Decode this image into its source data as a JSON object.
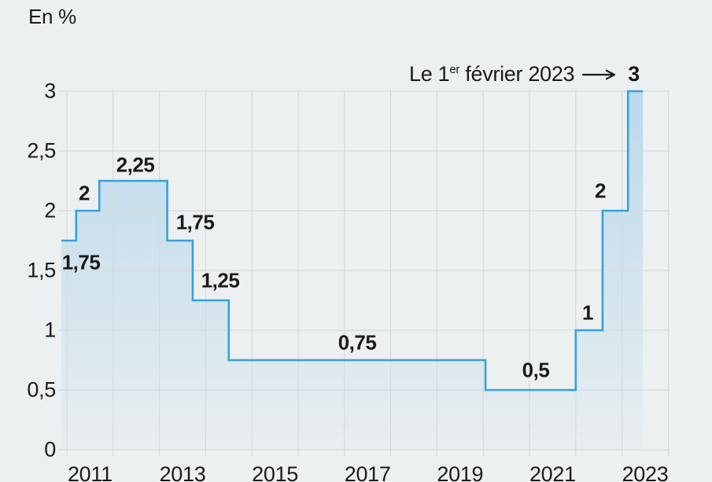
{
  "page": {
    "background_color": "#edf0f1",
    "text_color": "#1a1a1a"
  },
  "chart_data": {
    "type": "area",
    "subtype": "step-line",
    "title": "",
    "unit": "En %",
    "xlabel": "",
    "ylabel": "En %",
    "grid": true,
    "legend": "none",
    "xlim": [
      2010.75,
      2024
    ],
    "ylim": [
      0,
      3
    ],
    "x_grid_years": [
      2011,
      2012,
      2013,
      2014,
      2015,
      2016,
      2017,
      2018,
      2019,
      2020,
      2021,
      2022,
      2023,
      2024
    ],
    "x_ticks": [
      2011,
      2013,
      2015,
      2017,
      2019,
      2021,
      2023
    ],
    "x_tick_labels": [
      "2011",
      "2013",
      "2015",
      "2017",
      "2019",
      "2021",
      "2023"
    ],
    "y_ticks": [
      0,
      0.5,
      1,
      1.5,
      2,
      2.5,
      3
    ],
    "y_tick_labels": [
      "0",
      "0,5",
      "1",
      "1,5",
      "2",
      "2,5",
      "3"
    ],
    "steps": [
      {
        "year_start": 2010.88,
        "value": 1.75,
        "label": "1,75"
      },
      {
        "year_start": 2011.2,
        "value": 2.0,
        "label": "2"
      },
      {
        "year_start": 2011.7,
        "value": 2.25,
        "label": "2,25"
      },
      {
        "year_start": 2013.17,
        "value": 1.75,
        "label": "1,75"
      },
      {
        "year_start": 2013.72,
        "value": 1.25,
        "label": "1,25"
      },
      {
        "year_start": 2014.5,
        "value": 0.75,
        "label": "0,75"
      },
      {
        "year_start": 2020.05,
        "value": 0.5,
        "label": "0,5"
      },
      {
        "year_start": 2022.0,
        "value": 1.0,
        "label": "1"
      },
      {
        "year_start": 2022.58,
        "value": 2.0,
        "label": "2"
      },
      {
        "year_start": 2023.13,
        "value": 3.0,
        "label": "3"
      }
    ],
    "end_year": 2023.45,
    "annotation_parts": {
      "prefix": "Le 1",
      "superscript": "er",
      "suffix": " février 2023",
      "arrow_icon": "long-right-arrow",
      "value": "3"
    },
    "colors": {
      "line": "#36a2da",
      "fill": "#8cc3e6",
      "grid": "#d5dadd",
      "text": "#1a1a1a"
    }
  }
}
